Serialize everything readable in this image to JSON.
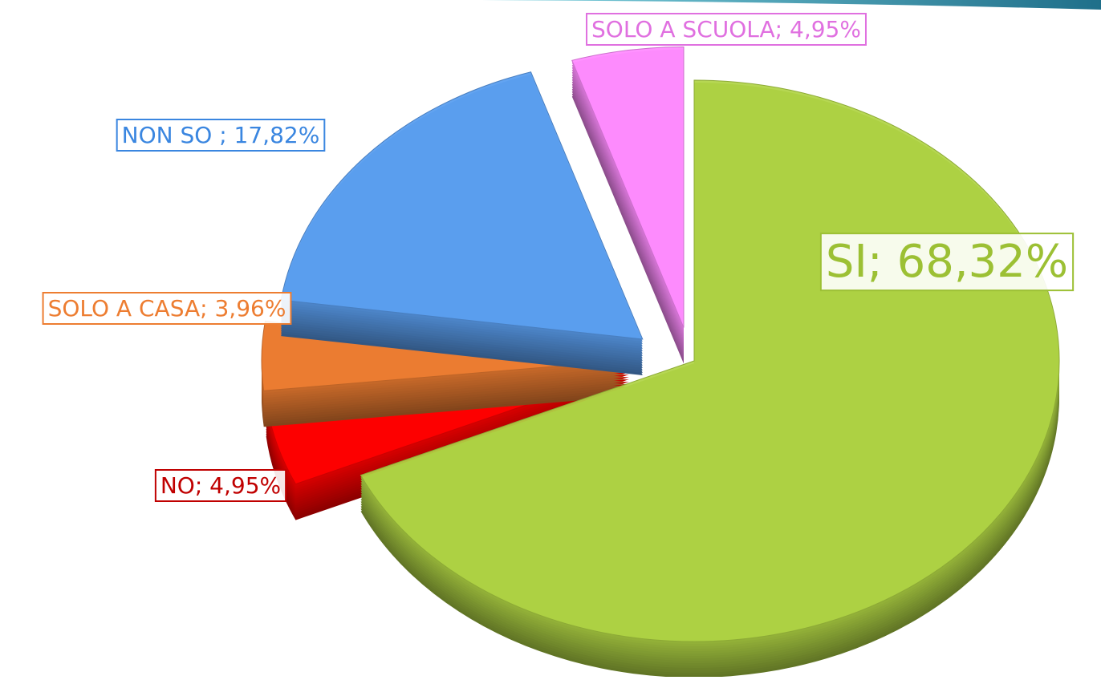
{
  "chart_data": {
    "type": "pie",
    "values": [
      68.32,
      4.95,
      3.96,
      17.82,
      4.95
    ],
    "value_labels": [
      "SI; 68,32%",
      "NO; 4,95%",
      "SOLO A CASA; 3,96%",
      "NON SO ; 17,82%",
      "SOLO A SCUOLA; 4,95%"
    ],
    "colors": [
      "#b0d444",
      "#ff0000",
      "#ed7d31",
      "#5b9ff0",
      "#ff8cff"
    ],
    "label_colors": [
      "#9cc034",
      "#c00000",
      "#ed7d31",
      "#3a86e0",
      "#e070e0"
    ]
  }
}
